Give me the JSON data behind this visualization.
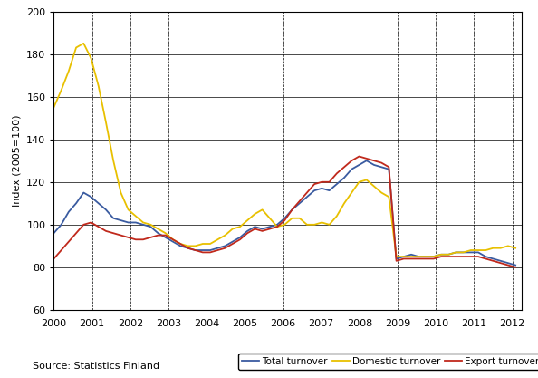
{
  "ylabel": "Index (2005=100)",
  "source_text": "Source: Statistics Finland",
  "xlim": [
    2000.0,
    2012.25
  ],
  "ylim": [
    60,
    200
  ],
  "yticks": [
    60,
    80,
    100,
    120,
    140,
    160,
    180,
    200
  ],
  "xticks": [
    2000,
    2001,
    2002,
    2003,
    2004,
    2005,
    2006,
    2007,
    2008,
    2009,
    2010,
    2011,
    2012
  ],
  "colors": {
    "total": "#3A5BA0",
    "domestic": "#E8C000",
    "export": "#C0291C"
  },
  "legend_labels": [
    "Total turnover",
    "Domestic turnover",
    "Export turnover"
  ],
  "total_turnover": [
    96,
    100,
    106,
    110,
    115,
    113,
    110,
    107,
    103,
    102,
    101,
    101,
    100,
    99,
    96,
    94,
    92,
    90,
    89,
    88,
    88,
    88,
    89,
    90,
    92,
    94,
    97,
    99,
    98,
    99,
    100,
    103,
    107,
    110,
    113,
    116,
    117,
    116,
    119,
    122,
    126,
    128,
    130,
    128,
    127,
    126,
    84,
    85,
    86,
    85,
    85,
    85,
    86,
    86,
    87,
    87,
    87,
    87,
    85,
    84,
    83,
    82,
    81
  ],
  "domestic_turnover": [
    155,
    163,
    172,
    183,
    185,
    178,
    165,
    148,
    130,
    115,
    107,
    104,
    101,
    100,
    98,
    96,
    93,
    91,
    90,
    90,
    91,
    91,
    93,
    95,
    98,
    99,
    102,
    105,
    107,
    103,
    99,
    100,
    103,
    103,
    100,
    100,
    101,
    100,
    104,
    110,
    115,
    120,
    121,
    118,
    115,
    113,
    85,
    85,
    85,
    85,
    85,
    85,
    86,
    86,
    87,
    87,
    88,
    88,
    88,
    89,
    89,
    90,
    89
  ],
  "export_turnover": [
    84,
    88,
    92,
    96,
    100,
    101,
    99,
    97,
    96,
    95,
    94,
    93,
    93,
    94,
    95,
    95,
    93,
    91,
    89,
    88,
    87,
    87,
    88,
    89,
    91,
    93,
    96,
    98,
    97,
    98,
    99,
    102,
    107,
    111,
    115,
    119,
    120,
    120,
    124,
    127,
    130,
    132,
    131,
    130,
    129,
    127,
    83,
    84,
    84,
    84,
    84,
    84,
    85,
    85,
    85,
    85,
    85,
    85,
    84,
    83,
    82,
    81,
    80
  ]
}
